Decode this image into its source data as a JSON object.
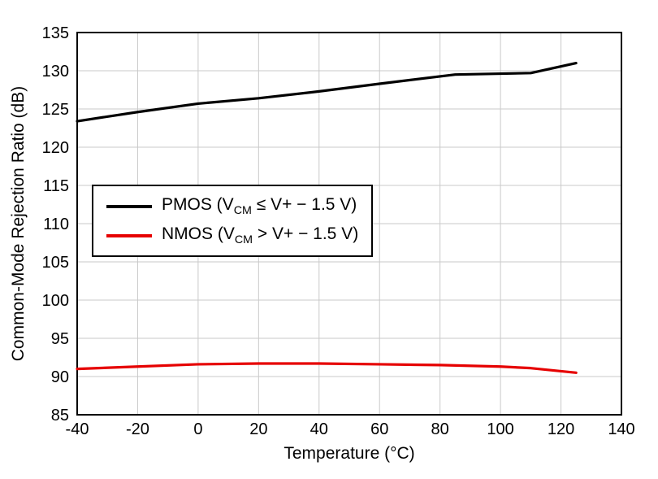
{
  "chart_data": {
    "type": "line",
    "title": "",
    "xlabel": "Temperature (°C)",
    "ylabel": "Common-Mode Rejection Ratio (dB)",
    "xlim": [
      -40,
      140
    ],
    "ylim": [
      85,
      135
    ],
    "xticks": [
      -40,
      -20,
      0,
      20,
      40,
      60,
      80,
      100,
      120,
      140
    ],
    "yticks": [
      85,
      90,
      95,
      100,
      105,
      110,
      115,
      120,
      125,
      130,
      135
    ],
    "grid": true,
    "grid_color": "#c9c9c9",
    "axis_color": "#000000",
    "legend_position": "upper-left-inside",
    "series": [
      {
        "name": "PMOS",
        "label_prefix": "PMOS (V",
        "label_sub": "CM",
        "label_suffix": " ≤ V+ − 1.5 V)",
        "color": "#000000",
        "x": [
          -40,
          -20,
          0,
          20,
          40,
          60,
          85,
          110,
          125
        ],
        "y": [
          123.4,
          124.6,
          125.7,
          126.4,
          127.3,
          128.3,
          129.5,
          129.7,
          131.0
        ]
      },
      {
        "name": "NMOS",
        "label_prefix": "NMOS (V",
        "label_sub": "CM",
        "label_suffix": " > V+ − 1.5 V)",
        "color": "#e60000",
        "x": [
          -40,
          -20,
          0,
          20,
          40,
          60,
          80,
          100,
          110,
          125
        ],
        "y": [
          91.0,
          91.3,
          91.6,
          91.7,
          91.7,
          91.6,
          91.5,
          91.3,
          91.1,
          90.5
        ]
      }
    ]
  }
}
